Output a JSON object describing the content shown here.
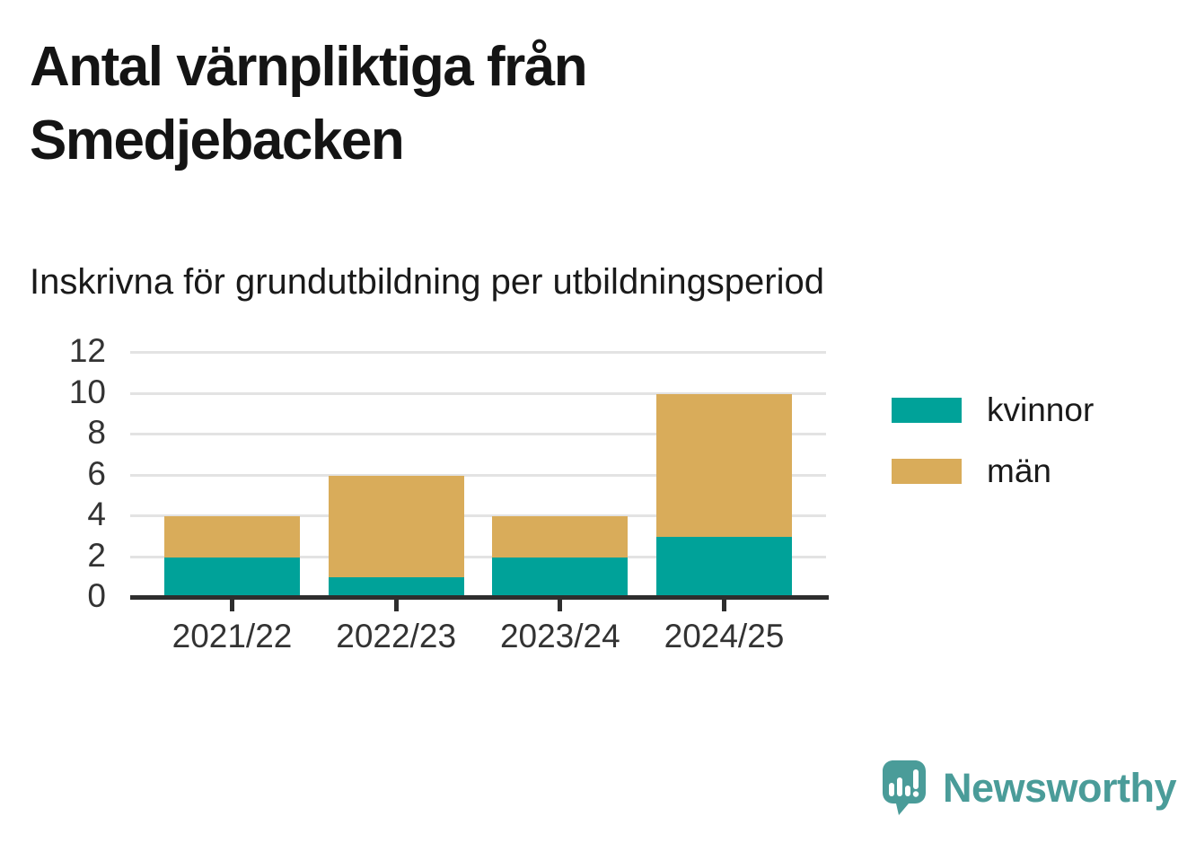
{
  "chart_data": {
    "type": "bar",
    "stacked": true,
    "title": "Antal värnpliktiga från Smedjebacken",
    "subtitle": "Inskrivna för grundutbildning per utbildningsperiod",
    "categories": [
      "2021/22",
      "2022/23",
      "2023/24",
      "2024/25"
    ],
    "series": [
      {
        "name": "kvinnor",
        "color": "#00a299",
        "values": [
          2,
          1,
          2,
          3
        ]
      },
      {
        "name": "män",
        "color": "#d9ac5a",
        "values": [
          2,
          5,
          2,
          7
        ]
      }
    ],
    "totals": [
      4,
      6,
      4,
      10
    ],
    "xlabel": "",
    "ylabel": "",
    "ylim": [
      0,
      12
    ],
    "yticks": [
      0,
      2,
      4,
      6,
      8,
      10,
      12
    ],
    "grid": "horizontal",
    "legend_position": "right"
  },
  "colors": {
    "grid": "#e3e3e3",
    "axis": "#2e2e2e",
    "tick_text": "#333333",
    "title_text": "#141414"
  },
  "branding": {
    "logo_text": "Newsworthy",
    "logo_color": "#4a9c99",
    "logo_icon": "speech-bubble-bar-chart-icon"
  }
}
